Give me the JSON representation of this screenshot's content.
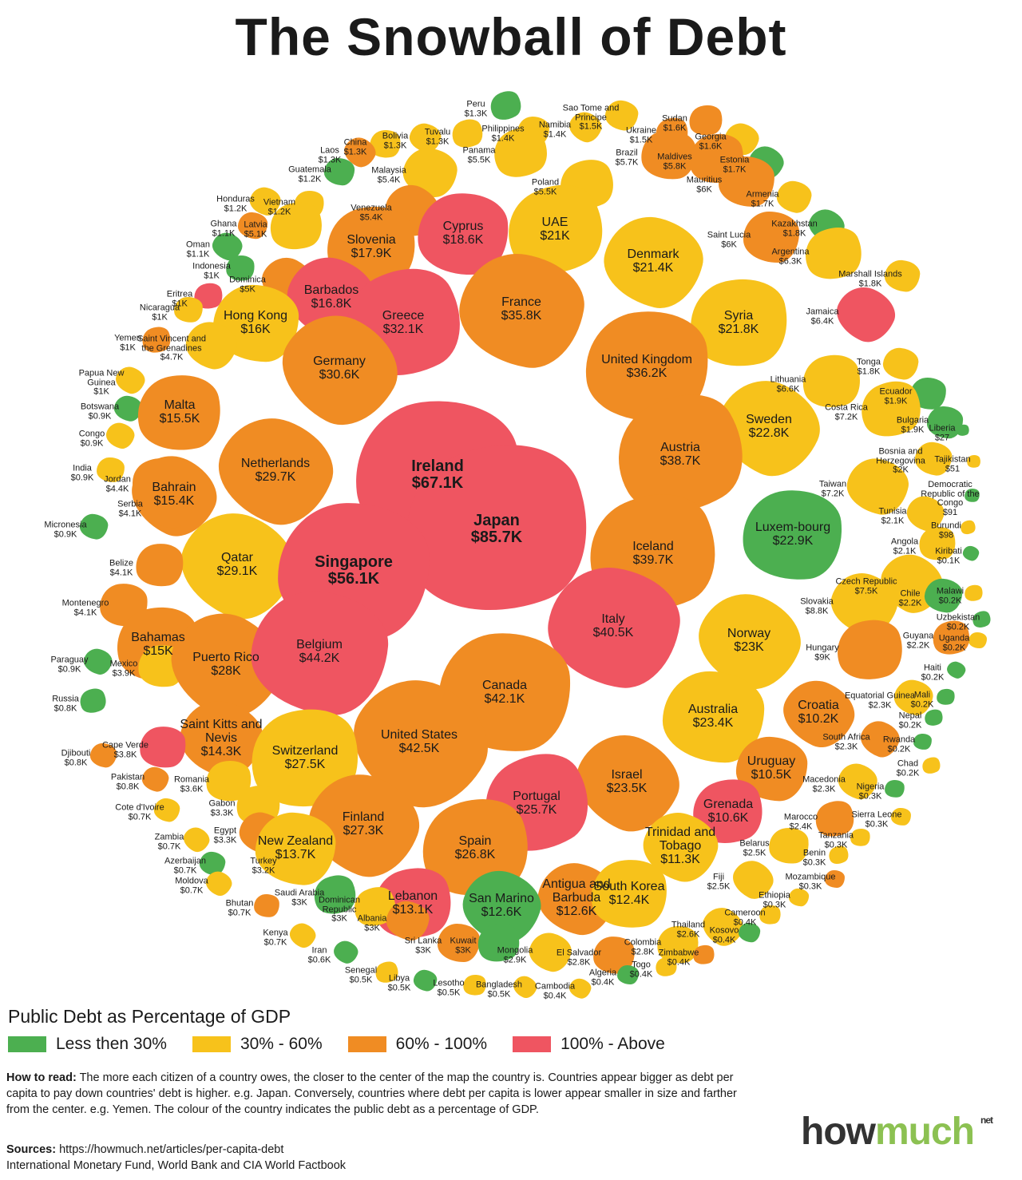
{
  "title": "The Snowball of Debt",
  "categories": {
    "g": {
      "label": "Less then 30%",
      "color": "#4caf50"
    },
    "y": {
      "label": "30% - 60%",
      "color": "#f7c21b"
    },
    "o": {
      "label": "60% - 100%",
      "color": "#f08c23"
    },
    "r": {
      "label": "100% - Above",
      "color": "#ef5561"
    }
  },
  "legend_title": "Public Debt as Percentage of GDP",
  "countries": [
    {
      "name": "Peru",
      "value": "$1.3K",
      "cat": "g"
    },
    {
      "name": "Sao Tome and Principe",
      "value": "$1.5K",
      "cat": "y"
    },
    {
      "name": "Sudan",
      "value": "$1.6K",
      "cat": "o"
    },
    {
      "name": "Namibia",
      "value": "$1.4K",
      "cat": "y"
    },
    {
      "name": "Philippines",
      "value": "$1.4K",
      "cat": "y"
    },
    {
      "name": "Tuvalu",
      "value": "$1.3K",
      "cat": "y"
    },
    {
      "name": "Bolivia",
      "value": "$1.3K",
      "cat": "y"
    },
    {
      "name": "China",
      "value": "$1.3K",
      "cat": "y"
    },
    {
      "name": "Laos",
      "value": "$1.3K",
      "cat": "o"
    },
    {
      "name": "Guatemala",
      "value": "$1.2K",
      "cat": "g"
    },
    {
      "name": "Ukraine",
      "value": "$1.5K",
      "cat": "o"
    },
    {
      "name": "Georgia",
      "value": "$1.6K",
      "cat": "y"
    },
    {
      "name": "Brazil",
      "value": "$5.7K",
      "cat": "o"
    },
    {
      "name": "Panama",
      "value": "$5.5K",
      "cat": "y"
    },
    {
      "name": "Malaysia",
      "value": "$5.4K",
      "cat": "y"
    },
    {
      "name": "Maldives",
      "value": "$5.8K",
      "cat": "o"
    },
    {
      "name": "Estonia",
      "value": "$1.7K",
      "cat": "g"
    },
    {
      "name": "Mauritius",
      "value": "$6K",
      "cat": "o"
    },
    {
      "name": "Poland",
      "value": "$5.5K",
      "cat": "y"
    },
    {
      "name": "Honduras",
      "value": "$1.2K",
      "cat": "y"
    },
    {
      "name": "Vietnam",
      "value": "$1.2K",
      "cat": "y"
    },
    {
      "name": "Venezuela",
      "value": "$5.4K",
      "cat": "o"
    },
    {
      "name": "Ghana",
      "value": "$1.1K",
      "cat": "o"
    },
    {
      "name": "Latvia",
      "value": "$5.1K",
      "cat": "y"
    },
    {
      "name": "Oman",
      "value": "$1.1K",
      "cat": "g"
    },
    {
      "name": "Cyprus",
      "value": "$18.6K",
      "cat": "r"
    },
    {
      "name": "UAE",
      "value": "$21K",
      "cat": "y"
    },
    {
      "name": "Armenia",
      "value": "$1.7K",
      "cat": "y"
    },
    {
      "name": "Slovenia",
      "value": "$17.9K",
      "cat": "o"
    },
    {
      "name": "Kazakhstan",
      "value": "$1.8K",
      "cat": "g"
    },
    {
      "name": "Saint Lucia",
      "value": "$6K",
      "cat": "o"
    },
    {
      "name": "Argentina",
      "value": "$6.3K",
      "cat": "y"
    },
    {
      "name": "Denmark",
      "value": "$21.4K",
      "cat": "y"
    },
    {
      "name": "Indonesia",
      "value": "$1K",
      "cat": "g"
    },
    {
      "name": "Dominica",
      "value": "$5K",
      "cat": "o"
    },
    {
      "name": "Marshall Islands",
      "value": "$1.8K",
      "cat": "y"
    },
    {
      "name": "Eritrea",
      "value": "$1K",
      "cat": "r"
    },
    {
      "name": "Barbados",
      "value": "$16.8K",
      "cat": "r"
    },
    {
      "name": "Nicaragua",
      "value": "$1K",
      "cat": "y"
    },
    {
      "name": "Greece",
      "value": "$32.1K",
      "cat": "r"
    },
    {
      "name": "France",
      "value": "$35.8K",
      "cat": "o"
    },
    {
      "name": "Syria",
      "value": "$21.8K",
      "cat": "y"
    },
    {
      "name": "Jamaica",
      "value": "$6.4K",
      "cat": "r"
    },
    {
      "name": "Hong Kong",
      "value": "$16K",
      "cat": "y"
    },
    {
      "name": "Yemen",
      "value": "$1K",
      "cat": "o"
    },
    {
      "name": "Saint Vincent and the Grenadines",
      "value": "$4.7K",
      "cat": "y"
    },
    {
      "name": "United Kingdom",
      "value": "$36.2K",
      "cat": "o"
    },
    {
      "name": "Germany",
      "value": "$30.6K",
      "cat": "o"
    },
    {
      "name": "Tonga",
      "value": "$1.8K",
      "cat": "y"
    },
    {
      "name": "Lithuania",
      "value": "$6.6K",
      "cat": "y"
    },
    {
      "name": "Papua New Guinea",
      "value": "$1K",
      "cat": "y"
    },
    {
      "name": "Ecuador",
      "value": "$1.9K",
      "cat": "g"
    },
    {
      "name": "Costa Rica",
      "value": "$7.2K",
      "cat": "y"
    },
    {
      "name": "Botswana",
      "value": "$0.9K",
      "cat": "g"
    },
    {
      "name": "Malta",
      "value": "$15.5K",
      "cat": "o"
    },
    {
      "name": "Sweden",
      "value": "$22.8K",
      "cat": "y"
    },
    {
      "name": "Bulgaria",
      "value": "$1.9K",
      "cat": "g"
    },
    {
      "name": "Liberia",
      "value": "$27",
      "cat": "g"
    },
    {
      "name": "Congo",
      "value": "$0.9K",
      "cat": "y"
    },
    {
      "name": "Ireland",
      "value": "$67.1K",
      "cat": "r"
    },
    {
      "name": "Austria",
      "value": "$38.7K",
      "cat": "o"
    },
    {
      "name": "Bosnia and Herzegovina",
      "value": "$2K",
      "cat": "y"
    },
    {
      "name": "Tajikistan",
      "value": "$51",
      "cat": "y"
    },
    {
      "name": "Netherlands",
      "value": "$29.7K",
      "cat": "o"
    },
    {
      "name": "India",
      "value": "$0.9K",
      "cat": "y"
    },
    {
      "name": "Jordan",
      "value": "$4.4K",
      "cat": "o"
    },
    {
      "name": "Taiwan",
      "value": "$7.2K",
      "cat": "y"
    },
    {
      "name": "Democratic Republic of the Congo",
      "value": "$91",
      "cat": "g"
    },
    {
      "name": "Bahrain",
      "value": "$15.4K",
      "cat": "o"
    },
    {
      "name": "Serbia",
      "value": "$4.1K",
      "cat": "o"
    },
    {
      "name": "Japan",
      "value": "$85.7K",
      "cat": "r"
    },
    {
      "name": "Tunisia",
      "value": "$2.1K",
      "cat": "y"
    },
    {
      "name": "Luxem-bourg",
      "value": "$22.9K",
      "cat": "g"
    },
    {
      "name": "Burundi",
      "value": "$98",
      "cat": "y"
    },
    {
      "name": "Micronesia",
      "value": "$0.9K",
      "cat": "g"
    },
    {
      "name": "Angola",
      "value": "$2.1K",
      "cat": "y"
    },
    {
      "name": "Qatar",
      "value": "$29.1K",
      "cat": "y"
    },
    {
      "name": "Singapore",
      "value": "$56.1K",
      "cat": "r"
    },
    {
      "name": "Iceland",
      "value": "$39.7K",
      "cat": "o"
    },
    {
      "name": "Kiribati",
      "value": "$0.1K",
      "cat": "g"
    },
    {
      "name": "Belize",
      "value": "$4.1K",
      "cat": "o"
    },
    {
      "name": "Czech Republic",
      "value": "$7.5K",
      "cat": "y"
    },
    {
      "name": "Chile",
      "value": "$2.2K",
      "cat": "g"
    },
    {
      "name": "Malawi",
      "value": "$0.2K",
      "cat": "y"
    },
    {
      "name": "Slovakia",
      "value": "$8.8K",
      "cat": "y"
    },
    {
      "name": "Montenegro",
      "value": "$4.1K",
      "cat": "o"
    },
    {
      "name": "Uzbekistan",
      "value": "$0.2K",
      "cat": "g"
    },
    {
      "name": "Italy",
      "value": "$40.5K",
      "cat": "r"
    },
    {
      "name": "Bahamas",
      "value": "$15K",
      "cat": "o"
    },
    {
      "name": "Norway",
      "value": "$23K",
      "cat": "y"
    },
    {
      "name": "Uganda",
      "value": "$0.2K",
      "cat": "y"
    },
    {
      "name": "Guyana",
      "value": "$2.2K",
      "cat": "o"
    },
    {
      "name": "Paraguay",
      "value": "$0.9K",
      "cat": "g"
    },
    {
      "name": "Mexico",
      "value": "$3.9K",
      "cat": "y"
    },
    {
      "name": "Puerto Rico",
      "value": "$28K",
      "cat": "o"
    },
    {
      "name": "Belgium",
      "value": "$44.2K",
      "cat": "r"
    },
    {
      "name": "Hungary",
      "value": "$9K",
      "cat": "o"
    },
    {
      "name": "Haiti",
      "value": "$0.2K",
      "cat": "g"
    },
    {
      "name": "Canada",
      "value": "$42.1K",
      "cat": "o"
    },
    {
      "name": "Russia",
      "value": "$0.8K",
      "cat": "g"
    },
    {
      "name": "Equatorial Guinea",
      "value": "$2.3K",
      "cat": "y"
    },
    {
      "name": "Mali",
      "value": "$0.2K",
      "cat": "g"
    },
    {
      "name": "Croatia",
      "value": "$10.2K",
      "cat": "o"
    },
    {
      "name": "Australia",
      "value": "$23.4K",
      "cat": "y"
    },
    {
      "name": "Nepal",
      "value": "$0.2K",
      "cat": "g"
    },
    {
      "name": "Saint Kitts and Nevis",
      "value": "$14.3K",
      "cat": "o"
    },
    {
      "name": "Cape Verde",
      "value": "$3.8K",
      "cat": "r"
    },
    {
      "name": "United States",
      "value": "$42.5K",
      "cat": "o"
    },
    {
      "name": "Djibouti",
      "value": "$0.8K",
      "cat": "o"
    },
    {
      "name": "Switzerland",
      "value": "$27.5K",
      "cat": "y"
    },
    {
      "name": "South Africa",
      "value": "$2.3K",
      "cat": "o"
    },
    {
      "name": "Rwanda",
      "value": "$0.2K",
      "cat": "g"
    },
    {
      "name": "Chad",
      "value": "$0.2K",
      "cat": "y"
    },
    {
      "name": "Pakistan",
      "value": "$0.8K",
      "cat": "o"
    },
    {
      "name": "Romania",
      "value": "$3.6K",
      "cat": "y"
    },
    {
      "name": "Israel",
      "value": "$23.5K",
      "cat": "o"
    },
    {
      "name": "Uruguay",
      "value": "$10.5K",
      "cat": "o"
    },
    {
      "name": "Grenada",
      "value": "$10.6K",
      "cat": "r"
    },
    {
      "name": "Macedonia",
      "value": "$2.3K",
      "cat": "y"
    },
    {
      "name": "Nigeria",
      "value": "$0.3K",
      "cat": "g"
    },
    {
      "name": "Portugal",
      "value": "$25.7K",
      "cat": "r"
    },
    {
      "name": "Cote d'Ivoire",
      "value": "$0.7K",
      "cat": "y"
    },
    {
      "name": "Gabon",
      "value": "$3.3K",
      "cat": "y"
    },
    {
      "name": "Finland",
      "value": "$27.3K",
      "cat": "o"
    },
    {
      "name": "Sierra Leone",
      "value": "$0.3K",
      "cat": "y"
    },
    {
      "name": "Marocco",
      "value": "$2.4K",
      "cat": "o"
    },
    {
      "name": "Egypt",
      "value": "$3.3K",
      "cat": "o"
    },
    {
      "name": "Tanzania",
      "value": "$0.3K",
      "cat": "y"
    },
    {
      "name": "Zambia",
      "value": "$0.7K",
      "cat": "y"
    },
    {
      "name": "New Zealand",
      "value": "$13.7K",
      "cat": "y"
    },
    {
      "name": "Spain",
      "value": "$26.8K",
      "cat": "o"
    },
    {
      "name": "Trinidad and Tobago",
      "value": "$11.3K",
      "cat": "y"
    },
    {
      "name": "Belarus",
      "value": "$2.5K",
      "cat": "y"
    },
    {
      "name": "Benin",
      "value": "$0.3K",
      "cat": "y"
    },
    {
      "name": "Azerbaijan",
      "value": "$0.7K",
      "cat": "g"
    },
    {
      "name": "Turkey",
      "value": "$3.2K",
      "cat": "y"
    },
    {
      "name": "Moldova",
      "value": "$0.7K",
      "cat": "y"
    },
    {
      "name": "Mozambique",
      "value": "$0.3K",
      "cat": "o"
    },
    {
      "name": "Saudi Arabia",
      "value": "$3K",
      "cat": "g"
    },
    {
      "name": "Antigua and Barbuda",
      "value": "$12.6K",
      "cat": "o"
    },
    {
      "name": "South Korea",
      "value": "$12.4K",
      "cat": "y"
    },
    {
      "name": "Fiji",
      "value": "$2.5K",
      "cat": "y"
    },
    {
      "name": "Ethiopia",
      "value": "$0.3K",
      "cat": "y"
    },
    {
      "name": "Lebanon",
      "value": "$13.1K",
      "cat": "r"
    },
    {
      "name": "San Marino",
      "value": "$12.6K",
      "cat": "g"
    },
    {
      "name": "Bhutan",
      "value": "$0.7K",
      "cat": "o"
    },
    {
      "name": "Dominican Republic",
      "value": "$3K",
      "cat": "y"
    },
    {
      "name": "Albania",
      "value": "$3K",
      "cat": "o"
    },
    {
      "name": "Cameroon",
      "value": "$0.4K",
      "cat": "y"
    },
    {
      "name": "Kenya",
      "value": "$0.7K",
      "cat": "y"
    },
    {
      "name": "Sri Lanka",
      "value": "$3K",
      "cat": "o"
    },
    {
      "name": "Kuwait",
      "value": "$3K",
      "cat": "g"
    },
    {
      "name": "Mongolia",
      "value": "$2.9K",
      "cat": "y"
    },
    {
      "name": "Colombia",
      "value": "$2.8K",
      "cat": "y"
    },
    {
      "name": "Thailand",
      "value": "$2.6K",
      "cat": "y"
    },
    {
      "name": "Kosovo",
      "value": "$0.4K",
      "cat": "g"
    },
    {
      "name": "Zimbabwe",
      "value": "$0.4K",
      "cat": "o"
    },
    {
      "name": "Iran",
      "value": "$0.6K",
      "cat": "g"
    },
    {
      "name": "El Salvador",
      "value": "$2.8K",
      "cat": "o"
    },
    {
      "name": "Senegal",
      "value": "$0.5K",
      "cat": "y"
    },
    {
      "name": "Libya",
      "value": "$0.5K",
      "cat": "g"
    },
    {
      "name": "Lesotho",
      "value": "$0.5K",
      "cat": "y"
    },
    {
      "name": "Bangladesh",
      "value": "$0.5K",
      "cat": "y"
    },
    {
      "name": "Algeria",
      "value": "$0.4K",
      "cat": "g"
    },
    {
      "name": "Togo",
      "value": "$0.4K",
      "cat": "y"
    },
    {
      "name": "Cambodia",
      "value": "$0.4K",
      "cat": "y"
    }
  ],
  "how_to_read": {
    "label": "How to read:",
    "text": " The more each citizen of a country owes, the closer to the center of the map the country is. Countries appear bigger as debt per capita to pay down countries' debt is higher. e.g. Japan. Conversely, countries where debt per capita is lower appear smaller in size and farther from the center. e.g. Yemen. The colour of the country indicates the public debt as a percentage of GDP."
  },
  "sources": {
    "label": "Sources:",
    "url": " https://howmuch.net/articles/per-capita-debt",
    "line2": "International Monetary Fund, World Bank and CIA World Factbook"
  },
  "logo": {
    "part1": "how",
    "part2": "much",
    "suffix": "net"
  }
}
